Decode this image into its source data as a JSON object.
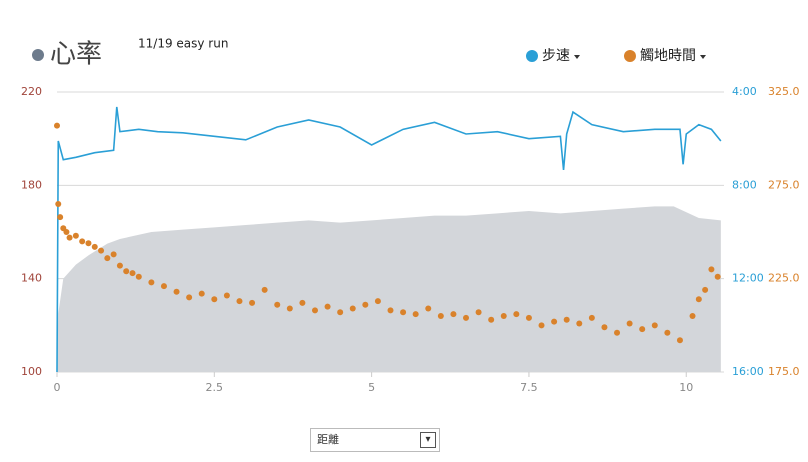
{
  "chart_data": {
    "type": "combo",
    "title": "心率",
    "subtitle": "11/19 easy run",
    "x_selector": "距離",
    "xlim": [
      0,
      10.6
    ],
    "xticks": [
      0,
      2.5,
      5,
      7.5,
      10
    ],
    "ylim": [
      100,
      220
    ],
    "yticks": [
      100,
      140,
      180,
      220
    ],
    "y2lim": [
      4,
      16
    ],
    "y2_inverted": true,
    "y2ticks": [
      {
        "value": 4,
        "label": "4:00"
      },
      {
        "value": 8,
        "label": "8:00"
      },
      {
        "value": 12,
        "label": "12:00"
      },
      {
        "value": 16,
        "label": "16:00"
      }
    ],
    "y3lim": [
      175,
      325
    ],
    "y3ticks": [
      {
        "value": 175,
        "label": "175.0"
      },
      {
        "value": 225,
        "label": "225.0"
      },
      {
        "value": 275,
        "label": "275.0"
      },
      {
        "value": 325,
        "label": "325.0"
      }
    ],
    "grid": true,
    "series": [
      {
        "type": "area",
        "color": "#d3d6da",
        "x": [
          0,
          0.02,
          0.1,
          0.3,
          0.5,
          0.8,
          1.0,
          1.5,
          2,
          2.5,
          3,
          3.5,
          4,
          4.5,
          5,
          5.5,
          6,
          6.5,
          7,
          7.5,
          8,
          8.5,
          9,
          9.5,
          9.8,
          10.2,
          10.55
        ],
        "values": [
          100,
          125,
          140,
          146,
          150,
          155,
          157,
          160,
          161,
          162,
          163,
          164,
          165,
          164,
          165,
          166,
          167,
          167,
          168,
          169,
          168,
          169,
          170,
          171,
          171,
          166,
          165
        ]
      },
      {
        "name": "步速",
        "type": "line",
        "axis": "y2",
        "color": "#2a9fd6",
        "x": [
          0,
          0.02,
          0.1,
          0.3,
          0.6,
          0.9,
          0.95,
          1.0,
          1.3,
          1.6,
          2.0,
          2.5,
          3.0,
          3.5,
          4.0,
          4.5,
          5.0,
          5.5,
          6.0,
          6.5,
          7.0,
          7.5,
          8.0,
          8.05,
          8.1,
          8.2,
          8.5,
          9.0,
          9.5,
          9.9,
          9.95,
          10.0,
          10.2,
          10.4,
          10.55
        ],
        "values": [
          16,
          6.1,
          6.9,
          6.8,
          6.6,
          6.5,
          4.64,
          5.7,
          5.6,
          5.7,
          5.75,
          5.9,
          6.05,
          5.5,
          5.2,
          5.5,
          6.27,
          5.6,
          5.3,
          5.8,
          5.7,
          6.0,
          5.9,
          7.34,
          5.8,
          4.86,
          5.4,
          5.7,
          5.6,
          5.6,
          7.1,
          5.8,
          5.4,
          5.6,
          6.1
        ]
      },
      {
        "name": "觸地時間",
        "type": "scatter",
        "axis": "y3",
        "color": "#d9822b",
        "x": [
          0,
          0.02,
          0.05,
          0.1,
          0.15,
          0.2,
          0.3,
          0.4,
          0.5,
          0.6,
          0.7,
          0.8,
          0.9,
          1.0,
          1.1,
          1.2,
          1.3,
          1.5,
          1.7,
          1.9,
          2.1,
          2.3,
          2.5,
          2.7,
          2.9,
          3.1,
          3.3,
          3.5,
          3.7,
          3.9,
          4.1,
          4.3,
          4.5,
          4.7,
          4.9,
          5.1,
          5.3,
          5.5,
          5.7,
          5.9,
          6.1,
          6.3,
          6.5,
          6.7,
          6.9,
          7.1,
          7.3,
          7.5,
          7.7,
          7.9,
          8.1,
          8.3,
          8.5,
          8.7,
          8.9,
          9.1,
          9.3,
          9.5,
          9.7,
          9.9,
          10.1,
          10.2,
          10.3,
          10.4,
          10.5
        ],
        "values": [
          307,
          265,
          258,
          252,
          250,
          247,
          248,
          245,
          244,
          242,
          240,
          236,
          238,
          232,
          229,
          228,
          226,
          223,
          221,
          218,
          215,
          217,
          214,
          216,
          213,
          212,
          219,
          211,
          209,
          212,
          208,
          210,
          207,
          209,
          211,
          213,
          208,
          207,
          206,
          209,
          205,
          206,
          204,
          207,
          203,
          205,
          206,
          204,
          200,
          202,
          203,
          201,
          204,
          199,
          196,
          201,
          198,
          200,
          196,
          192,
          205,
          214,
          219,
          230,
          226
        ]
      }
    ]
  }
}
